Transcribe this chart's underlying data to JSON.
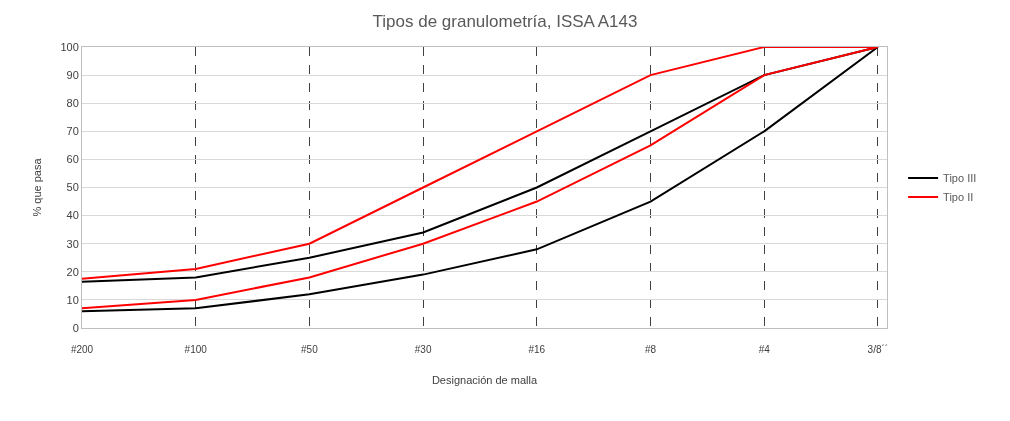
{
  "chart_data": {
    "type": "line",
    "title": "Tipos de granulometría, ISSA A143",
    "xlabel": "Designación de malla",
    "ylabel": "% que pasa",
    "categories": [
      "#200",
      "#100",
      "#50",
      "#30",
      "#16",
      "#8",
      "#4",
      "3/8´´"
    ],
    "series": [
      {
        "name": "Tipo III",
        "color": "#000000",
        "values": [
          16.5,
          18,
          25,
          34,
          50,
          70,
          90,
          100
        ]
      },
      {
        "color": "#000000",
        "values": [
          6,
          7,
          12,
          19,
          28,
          45,
          70,
          100
        ]
      },
      {
        "name": "Tipo II",
        "color": "#ff0000",
        "values": [
          17.5,
          21,
          30,
          50,
          70,
          90,
          100,
          100
        ]
      },
      {
        "color": "#ff0000",
        "values": [
          7,
          10,
          18,
          30,
          45,
          65,
          90,
          100
        ]
      }
    ],
    "ylim": [
      0,
      100
    ],
    "yticks": [
      0,
      10,
      20,
      30,
      40,
      50,
      60,
      70,
      80,
      90,
      100
    ],
    "grid": true,
    "legend": "right",
    "marker": "none",
    "line_style": "solid"
  }
}
